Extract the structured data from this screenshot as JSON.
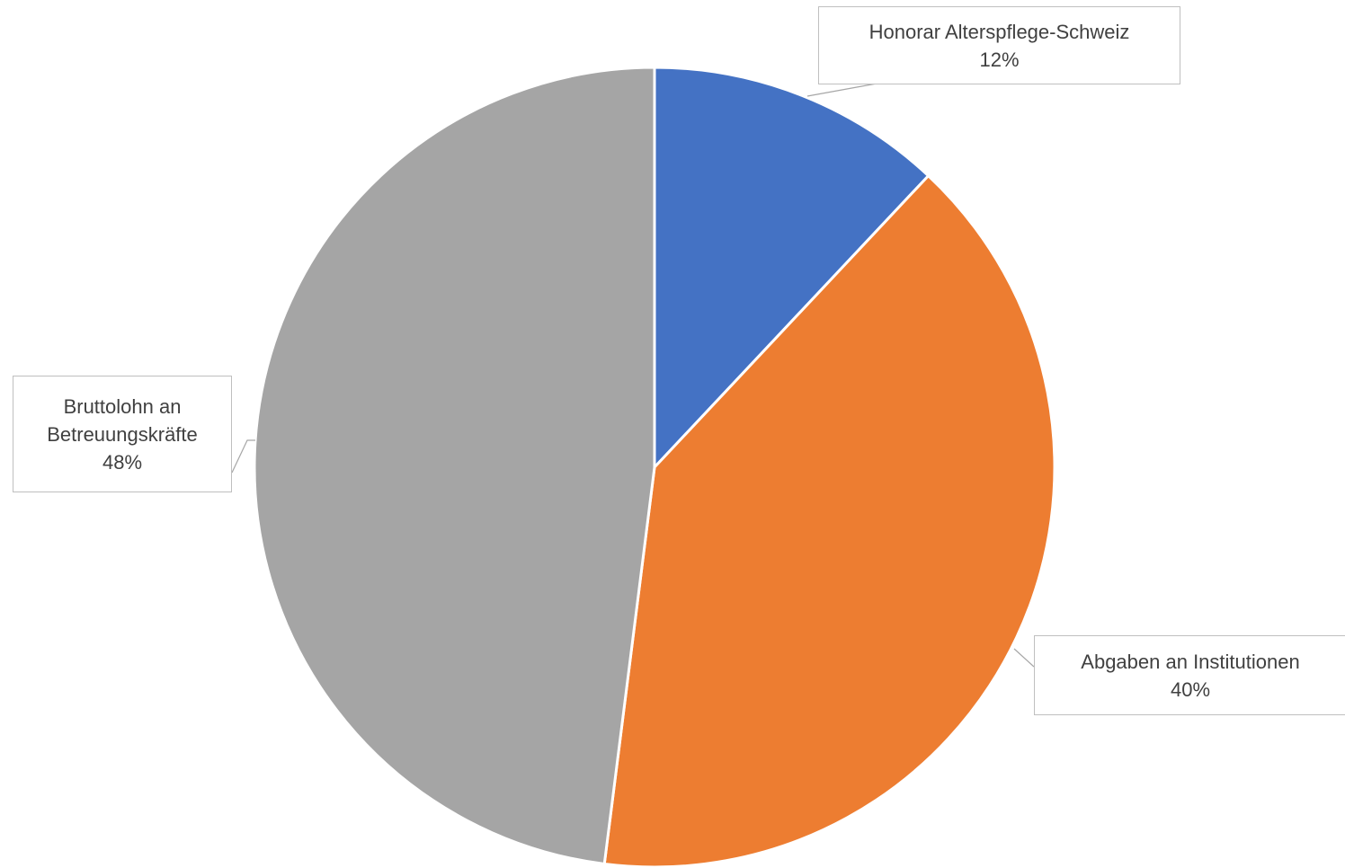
{
  "chart_data": {
    "type": "pie",
    "title": "",
    "slices": [
      {
        "label": "Honorar Alterspflege-Schweiz",
        "value": 12,
        "value_label": "12%",
        "color": "#4472c4"
      },
      {
        "label": "Abgaben an Institutionen",
        "value": 40,
        "value_label": "40%",
        "color": "#ed7d31"
      },
      {
        "label": "Bruttolohn an Betreuungskräfte",
        "label_lines": [
          "Bruttolohn an",
          "Betreuungskräfte"
        ],
        "value": 48,
        "value_label": "48%",
        "color": "#a5a5a5"
      }
    ],
    "start_angle": "12 o'clock",
    "direction": "clockwise",
    "legend": "none",
    "data_labels": "callouts with leader lines"
  }
}
